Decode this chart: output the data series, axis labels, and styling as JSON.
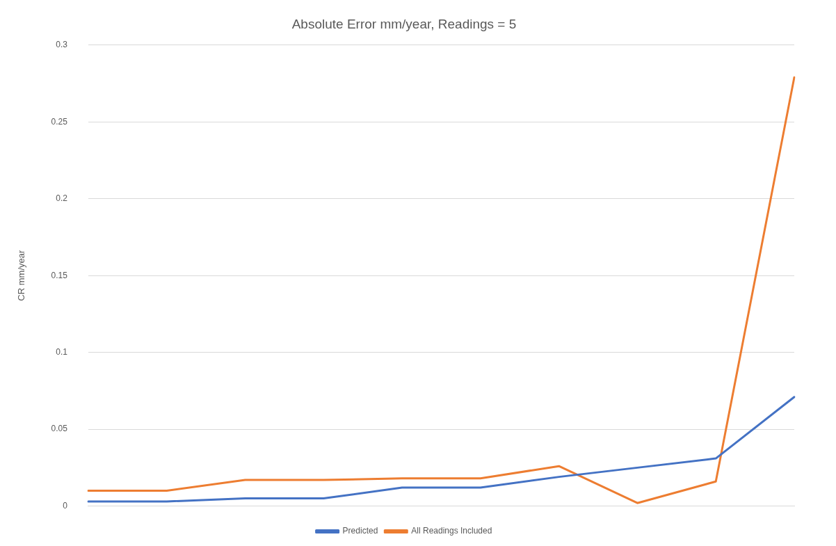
{
  "chart_data": {
    "type": "line",
    "title": "Absolute Error mm/year, Readings = 5",
    "ylabel": "CR mm/year",
    "categories": [
      null,
      null,
      null,
      null,
      null,
      null,
      null,
      null,
      null,
      null
    ],
    "series": [
      {
        "name": "Predicted",
        "color": "#4472c4",
        "values": [
          0.003,
          0.003,
          0.005,
          0.005,
          0.012,
          0.012,
          0.019,
          0.025,
          0.031,
          0.071
        ]
      },
      {
        "name": "All Readings Included",
        "color": "#ed7d31",
        "values": [
          0.01,
          0.01,
          0.017,
          0.017,
          0.018,
          0.018,
          0.026,
          0.002,
          0.016,
          0.279
        ]
      }
    ],
    "ylim": [
      0,
      0.3
    ],
    "yticks": [
      0,
      0.05,
      0.1,
      0.15,
      0.2,
      0.25,
      0.3
    ],
    "grid": "y",
    "legend": "bottom",
    "marker": "none",
    "line_style": "solid"
  }
}
